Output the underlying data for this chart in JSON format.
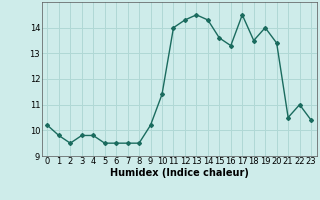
{
  "x": [
    0,
    1,
    2,
    3,
    4,
    5,
    6,
    7,
    8,
    9,
    10,
    11,
    12,
    13,
    14,
    15,
    16,
    17,
    18,
    19,
    20,
    21,
    22,
    23
  ],
  "y": [
    10.2,
    9.8,
    9.5,
    9.8,
    9.8,
    9.5,
    9.5,
    9.5,
    9.5,
    10.2,
    11.4,
    14.0,
    14.3,
    14.5,
    14.3,
    13.6,
    13.3,
    14.5,
    13.5,
    14.0,
    13.4,
    10.5,
    11.0,
    10.4
  ],
  "line_color": "#1a6b5e",
  "marker": "D",
  "marker_size": 2.0,
  "bg_color": "#ceecea",
  "grid_color": "#b0d8d5",
  "xlabel": "Humidex (Indice chaleur)",
  "xlim": [
    -0.5,
    23.5
  ],
  "ylim": [
    9.0,
    15.0
  ],
  "yticks": [
    9,
    10,
    11,
    12,
    13,
    14
  ],
  "xticks": [
    0,
    1,
    2,
    3,
    4,
    5,
    6,
    7,
    8,
    9,
    10,
    11,
    12,
    13,
    14,
    15,
    16,
    17,
    18,
    19,
    20,
    21,
    22,
    23
  ],
  "xlabel_fontsize": 7.0,
  "tick_fontsize": 6.0,
  "line_width": 1.0
}
